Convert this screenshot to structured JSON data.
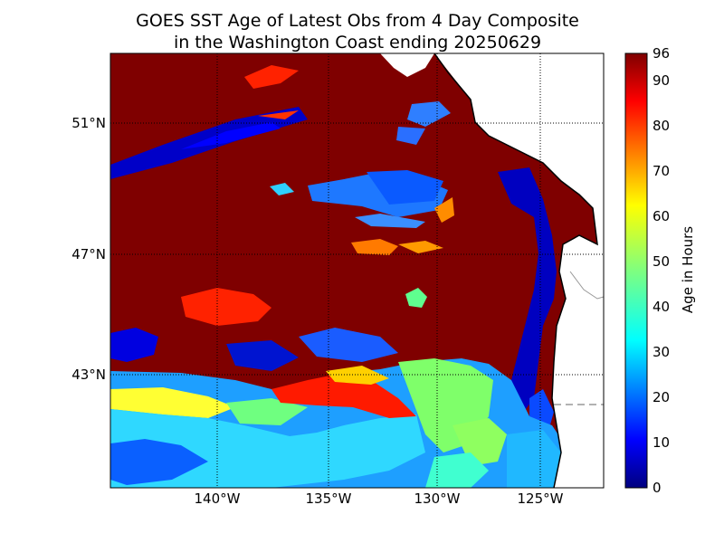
{
  "title_line1": "GOES SST Age of Latest Obs from 4 Day Composite",
  "title_line2": "in the Washington Coast ending 20250629",
  "map": {
    "lat_labels": [
      "51°N",
      "47°N",
      "43°N"
    ],
    "lon_labels": [
      "140°W",
      "135°W",
      "130°W",
      "125°W"
    ],
    "grid": "dotted",
    "colormap": "jet"
  },
  "colorbar": {
    "label": "Age in Hours",
    "ticks": [
      "0",
      "10",
      "20",
      "30",
      "40",
      "50",
      "60",
      "70",
      "80",
      "90",
      "96"
    ],
    "min": 0,
    "max": 96,
    "colors": {
      "c0": "#00007f",
      "c1": "#0000ff",
      "c2": "#007fff",
      "c3": "#00ffff",
      "c4": "#7fff7f",
      "c5": "#ffff00",
      "c6": "#ff7f00",
      "c7": "#ff0000",
      "c8": "#7f0000"
    }
  }
}
